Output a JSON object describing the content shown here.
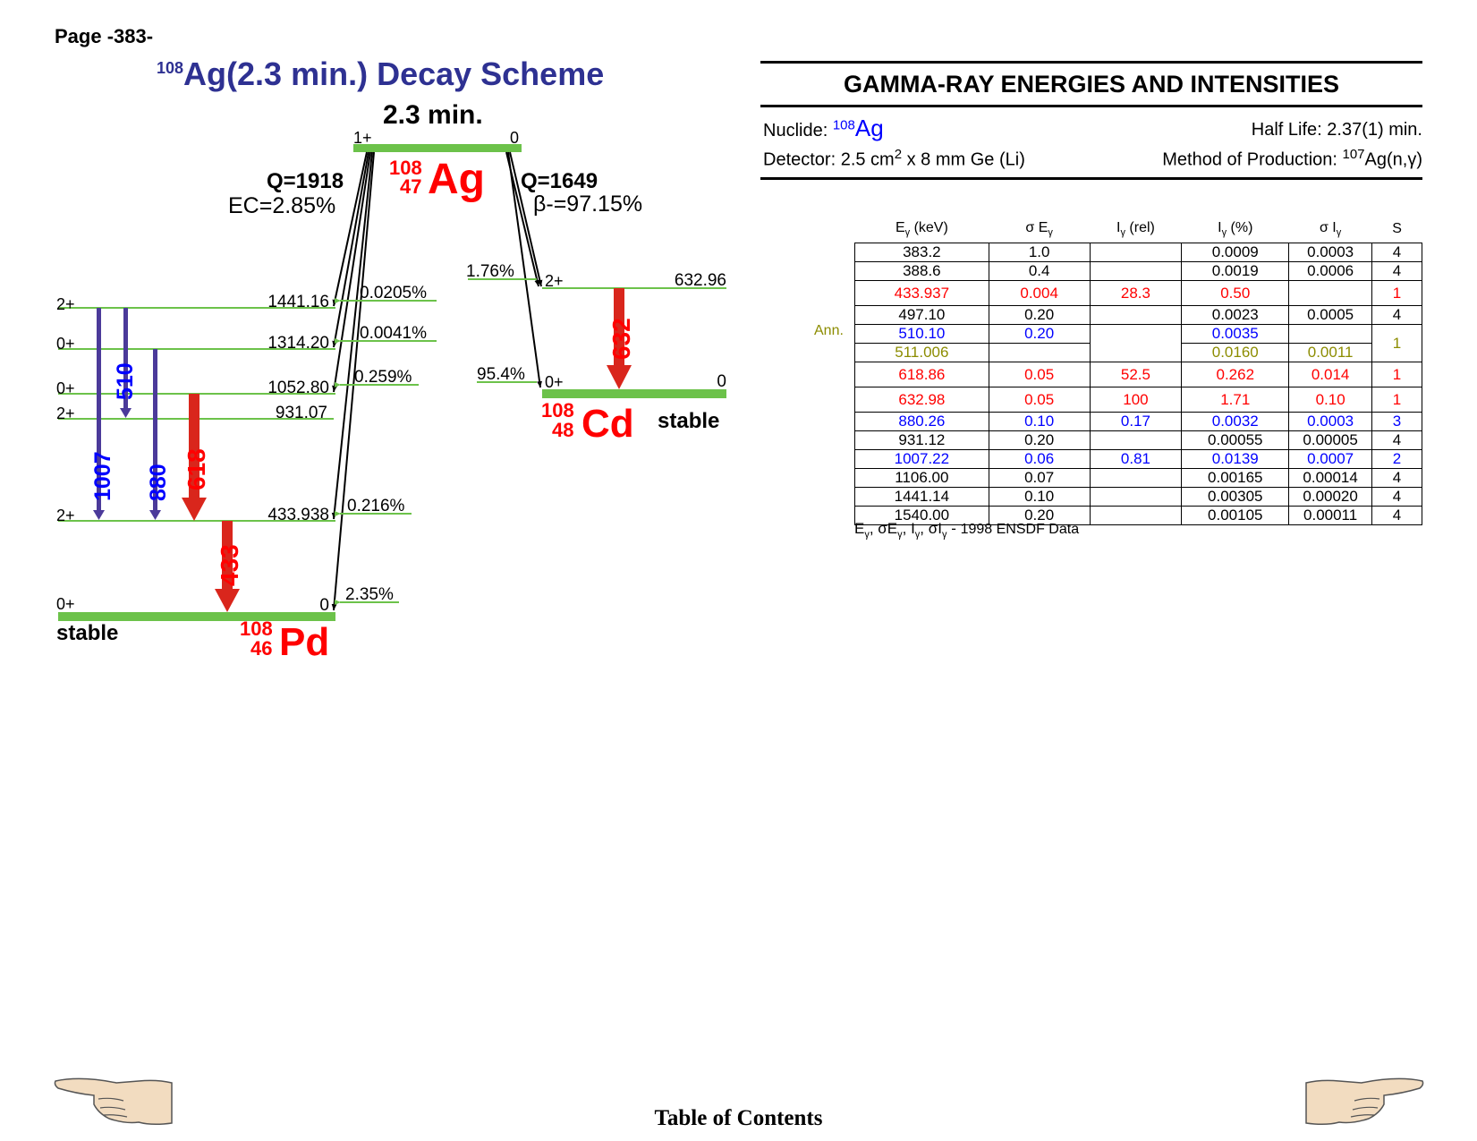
{
  "page_label": "Page -383-",
  "scheme": {
    "title_mass": "108",
    "title_text": "Ag(2.3 min.) Decay Scheme",
    "parent": {
      "half_life": "2.3 min.",
      "spin": "1+",
      "energy": "0",
      "mass": "108",
      "z": "47",
      "symbol": "Ag"
    },
    "ec_branch": {
      "q": "Q=1918",
      "fraction": "EC=2.85%"
    },
    "beta_branch": {
      "q": "Q=1649",
      "fraction": "β-=97.15%"
    },
    "pd": {
      "mass": "108",
      "z": "46",
      "symbol": "Pd",
      "stable_label": "stable",
      "levels": [
        {
          "spin": "2+",
          "energy": "1441.16",
          "feed": "0.0205%"
        },
        {
          "spin": "0+",
          "energy": "1314.20",
          "feed": "0.0041%"
        },
        {
          "spin": "0+",
          "energy": "1052.80",
          "feed": "0.259%"
        },
        {
          "spin": "2+",
          "energy": "931.07",
          "feed": ""
        },
        {
          "spin": "2+",
          "energy": "433.938",
          "feed": "0.216%"
        },
        {
          "spin": "0+",
          "energy": "0",
          "feed": "2.35%"
        }
      ],
      "gammas": [
        "1007",
        "510",
        "880",
        "618",
        "433"
      ]
    },
    "cd": {
      "mass": "108",
      "z": "48",
      "symbol": "Cd",
      "stable_label": "stable",
      "levels": [
        {
          "spin": "2+",
          "energy": "632.96",
          "feed": "1.76%"
        },
        {
          "spin": "0+",
          "energy": "0",
          "feed": "95.4%"
        }
      ],
      "gammas": [
        "632"
      ]
    },
    "colors": {
      "level": "#6cc24a",
      "strong_gamma": "#d9261c",
      "weak_gamma": "#4b3a9a",
      "label_blue": "#0000ff",
      "label_red": "#ff0000",
      "title": "#2e3192"
    }
  },
  "gamma_panel": {
    "title": "GAMMA-RAY ENERGIES AND INTENSITIES",
    "nuclide_label": "Nuclide:",
    "nuclide_mass": "108",
    "nuclide_symbol": "Ag",
    "half_life": "Half Life: 2.37(1) min.",
    "detector_pre": "Detector: 2.5 cm",
    "detector_sup": "2",
    "detector_post": " x 8 mm Ge (Li)",
    "production_pre": "Method of Production: ",
    "production_sup": "107",
    "production_post": "Ag(n,γ)",
    "columns": [
      "Eγ (keV)",
      "σ Eγ",
      "Iγ (rel)",
      "Iγ (%)",
      "σ Iγ",
      "S"
    ],
    "ann_label": "Ann.",
    "rows": [
      {
        "e": "383.2",
        "se": "1.0",
        "irel": "",
        "ipct": "0.0009",
        "si": "0.0003",
        "s": "4",
        "color": "black"
      },
      {
        "e": "388.6",
        "se": "0.4",
        "irel": "",
        "ipct": "0.0019",
        "si": "0.0006",
        "s": "4",
        "color": "black"
      },
      {
        "e": "433.937",
        "se": "0.004",
        "irel": "28.3",
        "ipct": "0.50",
        "si": "",
        "s": "1",
        "color": "red"
      },
      {
        "e": "497.10",
        "se": "0.20",
        "irel": "",
        "ipct": "0.0023",
        "si": "0.0005",
        "s": "4",
        "color": "black"
      },
      {
        "e": "510.10",
        "se": "0.20",
        "irel": "",
        "ipct": "0.0035",
        "si": "",
        "s": "1",
        "color": "blue"
      },
      {
        "e": "511.006",
        "se": "",
        "irel": "",
        "ipct": "0.0160",
        "si": "0.0011",
        "s": "",
        "color": "olive"
      },
      {
        "e": "618.86",
        "se": "0.05",
        "irel": "52.5",
        "ipct": "0.262",
        "si": "0.014",
        "s": "1",
        "color": "red"
      },
      {
        "e": "632.98",
        "se": "0.05",
        "irel": "100",
        "ipct": "1.71",
        "si": "0.10",
        "s": "1",
        "color": "red"
      },
      {
        "e": "880.26",
        "se": "0.10",
        "irel": "0.17",
        "ipct": "0.0032",
        "si": "0.0003",
        "s": "3",
        "color": "blue"
      },
      {
        "e": "931.12",
        "se": "0.20",
        "irel": "",
        "ipct": "0.00055",
        "si": "0.00005",
        "s": "4",
        "color": "black"
      },
      {
        "e": "1007.22",
        "se": "0.06",
        "irel": "0.81",
        "ipct": "0.0139",
        "si": "0.0007",
        "s": "2",
        "color": "blue"
      },
      {
        "e": "1106.00",
        "se": "0.07",
        "irel": "",
        "ipct": "0.00165",
        "si": "0.00014",
        "s": "4",
        "color": "black"
      },
      {
        "e": "1441.14",
        "se": "0.10",
        "irel": "",
        "ipct": "0.00305",
        "si": "0.00020",
        "s": "4",
        "color": "black"
      },
      {
        "e": "1540.00",
        "se": "0.20",
        "irel": "",
        "ipct": "0.00105",
        "si": "0.00011",
        "s": "4",
        "color": "black"
      }
    ],
    "footnote": "Eγ, σEγ, Iγ, σIγ - 1998 ENSDF Data"
  },
  "footer": {
    "toc_label": "Table of Contents",
    "left_icon": "pointing-hand-left-icon",
    "right_icon": "pointing-hand-right-icon"
  }
}
